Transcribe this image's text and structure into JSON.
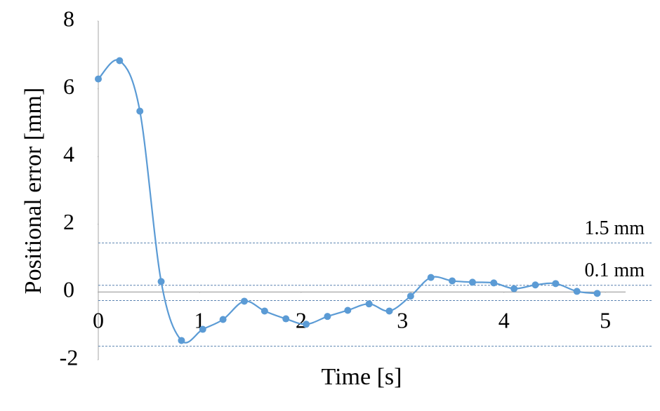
{
  "chart_data": {
    "type": "line",
    "x_label": "Time [s]",
    "y_label": "Positional error [mm]",
    "x": [
      0,
      0.21,
      0.41,
      0.62,
      0.82,
      1.03,
      1.23,
      1.44,
      1.64,
      1.85,
      2.05,
      2.26,
      2.46,
      2.67,
      2.87,
      3.08,
      3.28,
      3.49,
      3.69,
      3.9,
      4.1,
      4.31,
      4.51,
      4.72,
      4.92
    ],
    "series": [
      {
        "color": "#5b9bd5",
        "values": [
          6.29,
          6.83,
          5.34,
          0.31,
          -1.43,
          -1.1,
          -0.81,
          -0.27,
          -0.56,
          -0.79,
          -0.95,
          -0.72,
          -0.54,
          -0.35,
          -0.56,
          -0.12,
          0.43,
          0.33,
          0.29,
          0.27,
          0.1,
          0.21,
          0.25,
          0.02,
          -0.04
        ]
      }
    ],
    "xlim": [
      0,
      5.2
    ],
    "xticks": [
      0,
      1,
      2,
      3,
      4,
      5
    ],
    "ylim": [
      -2,
      8
    ],
    "yticks": [
      -2,
      0,
      2,
      4,
      6,
      8
    ],
    "reference_lines": [
      {
        "label": "1.5 mm",
        "values": [
          1.45,
          -1.6
        ]
      },
      {
        "label": "0.1 mm",
        "values": [
          0.2,
          -0.25
        ]
      }
    ],
    "reference_color": "#5b84b1"
  }
}
